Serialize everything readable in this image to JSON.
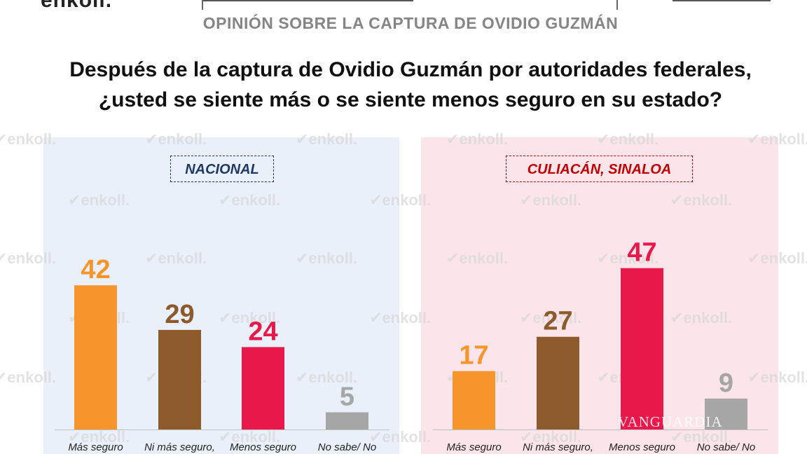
{
  "header": {
    "logo_partial": "enkoll.",
    "subtitle": "OPINIÓN SOBRE LA CAPTURA DE OVIDIO GUZMÁN",
    "question_line1": "Después de la captura de Ovidio Guzmán por autoridades federales,",
    "question_line2": "¿usted se siente más o se siente menos seguro en su estado?"
  },
  "watermarks": {
    "brand": "enkoll.",
    "media": "VANGUARDIA"
  },
  "colors": {
    "mas_seguro": "#f7952d",
    "ni_mas": "#8c5a2b",
    "menos_seguro": "#e8184a",
    "no_sabe": "#a6a6a6",
    "panel_left_bg": "#eaf0fa",
    "panel_right_bg": "#fbe4ea"
  },
  "chart_data": [
    {
      "type": "bar",
      "title": "NACIONAL",
      "categories": [
        "Más seguro",
        "Ni más seguro,",
        "Menos seguro",
        "No sabe/ No"
      ],
      "values": [
        42,
        29,
        24,
        5
      ],
      "ylim": [
        0,
        50
      ]
    },
    {
      "type": "bar",
      "title": "CULIACÁN, SINALOA",
      "categories": [
        "Más seguro",
        "Ni más seguro,",
        "Menos seguro",
        "No sabe/ No"
      ],
      "values": [
        17,
        27,
        47,
        9
      ],
      "ylim": [
        0,
        50
      ]
    }
  ]
}
